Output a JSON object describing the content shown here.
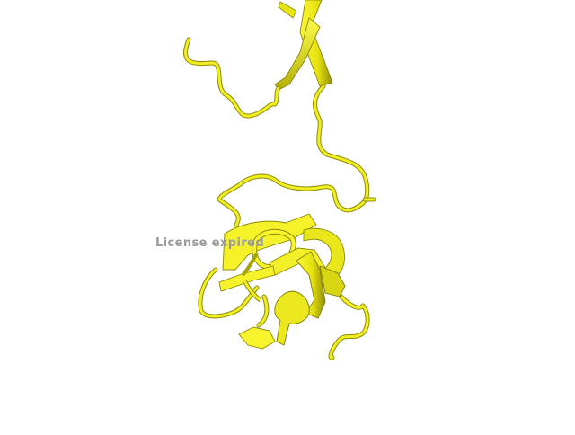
{
  "viewer": {
    "watermark_text": "License expired"
  },
  "structure": {
    "representation": "cartoon",
    "color": "#f0ee1a",
    "shade_color": "#9c9a0e",
    "background": "#ffffff"
  }
}
